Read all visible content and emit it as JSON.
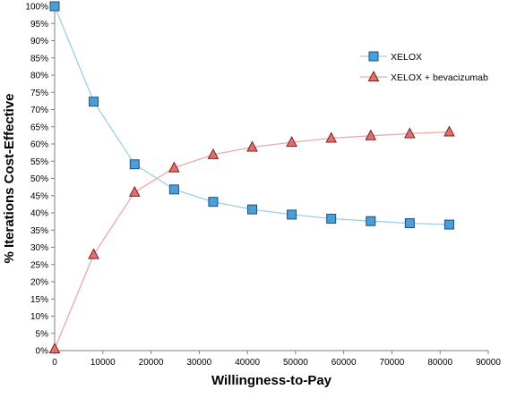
{
  "chart_data": {
    "type": "line",
    "xlabel": "Willingness-to-Pay",
    "ylabel": "% Iterations Cost-Effective",
    "xlim": [
      0,
      90000
    ],
    "ylim": [
      0,
      100
    ],
    "x_ticks": [
      "0",
      "10000",
      "20000",
      "30000",
      "40000",
      "50000",
      "60000",
      "70000",
      "80000",
      "90000"
    ],
    "y_ticks": [
      "0%",
      "5%",
      "10%",
      "15%",
      "20%",
      "25%",
      "30%",
      "35%",
      "40%",
      "45%",
      "50%",
      "55%",
      "60%",
      "65%",
      "70%",
      "75%",
      "80%",
      "85%",
      "90%",
      "95%",
      "100%"
    ],
    "grid": false,
    "legend_position": "top-right",
    "x": [
      0,
      8100,
      16600,
      24800,
      32900,
      41000,
      49200,
      57400,
      65600,
      73700,
      81900
    ],
    "series": [
      {
        "name": "XELOX",
        "marker": "square",
        "line_color": "#9ccfe8",
        "marker_fill": "#4a9fd8",
        "marker_stroke": "#1d4f7a",
        "values": [
          100,
          72.3,
          54.1,
          46.8,
          43.2,
          41.0,
          39.5,
          38.3,
          37.6,
          37.0,
          36.6
        ]
      },
      {
        "name": "XELOX + bevacizumab",
        "marker": "triangle",
        "line_color": "#f0a8a8",
        "marker_fill": "#e07070",
        "marker_stroke": "#7a1f1f",
        "values": [
          0.5,
          27.9,
          46.0,
          53.1,
          56.9,
          59.1,
          60.5,
          61.7,
          62.4,
          63.0,
          63.5
        ]
      }
    ]
  }
}
